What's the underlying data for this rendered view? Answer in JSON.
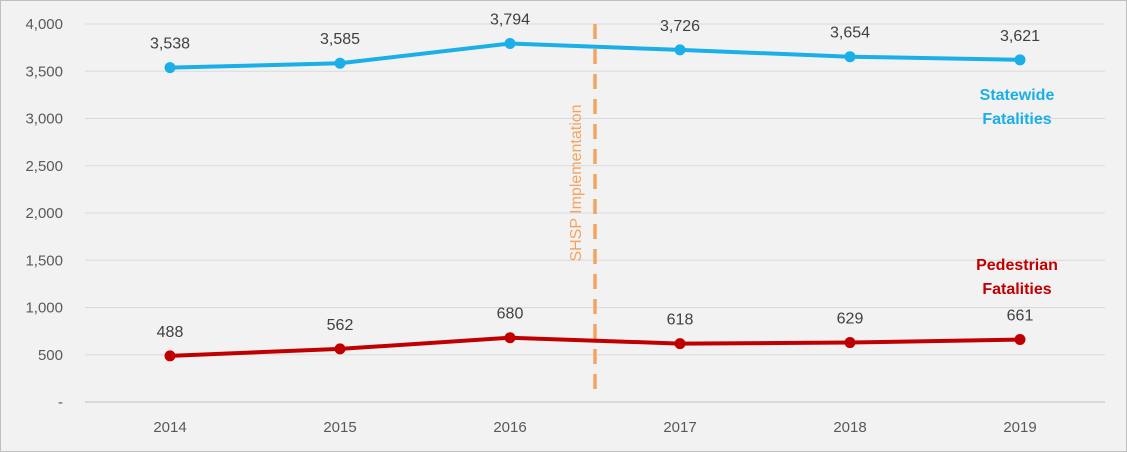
{
  "chart_data": {
    "type": "line",
    "title": "",
    "xlabel": "",
    "ylabel": "",
    "categories": [
      "2014",
      "2015",
      "2016",
      "2017",
      "2018",
      "2019"
    ],
    "ylim": [
      0,
      4000
    ],
    "yticks": [
      0,
      500,
      1000,
      1500,
      2000,
      2500,
      3000,
      3500,
      4000
    ],
    "ytick_labels": [
      "-",
      "500",
      "1,000",
      "1,500",
      "2,000",
      "2,500",
      "3,000",
      "3,500",
      "4,000"
    ],
    "grid": true,
    "series": [
      {
        "name": "Statewide Fatalities",
        "label_lines": [
          "Statewide",
          "Fatalities"
        ],
        "color": "#1aafe6",
        "values": [
          3538,
          3585,
          3794,
          3726,
          3654,
          3621
        ],
        "data_labels": [
          "3,538",
          "3,585",
          "3,794",
          "3,726",
          "3,654",
          "3,621"
        ]
      },
      {
        "name": "Pedestrian Fatalities",
        "label_lines": [
          "Pedestrian",
          "Fatalities"
        ],
        "color": "#c00000",
        "values": [
          488,
          562,
          680,
          618,
          629,
          661
        ],
        "data_labels": [
          "488",
          "562",
          "680",
          "618",
          "629",
          "661"
        ]
      }
    ],
    "annotations": [
      {
        "text": "SHSP Implementation",
        "type": "vertical-dashed-line",
        "x_position": "between 2016 and 2017",
        "color": "#f4a460"
      }
    ]
  }
}
